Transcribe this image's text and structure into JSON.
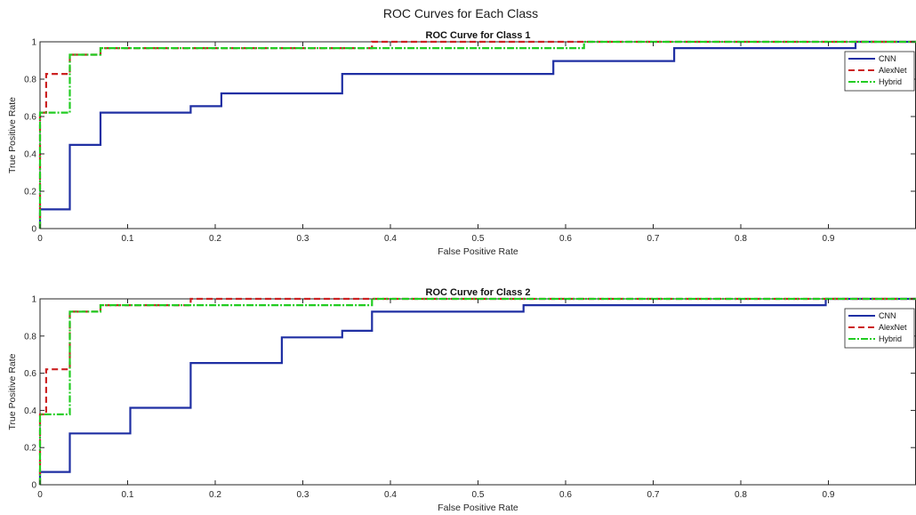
{
  "figure_title": "ROC Curves for Each Class",
  "colors": {
    "cnn": "#1f2fa3",
    "alexnet": "#cc2222",
    "hybrid": "#22cc22",
    "axis": "#262626"
  },
  "chart_data": [
    {
      "type": "line",
      "title": "ROC Curve for Class 1",
      "xlabel": "False Positive Rate",
      "ylabel": "True Positive Rate",
      "xlim": [
        0,
        1
      ],
      "ylim": [
        0,
        1
      ],
      "xticks": [
        "0",
        "0.1",
        "0.2",
        "0.3",
        "0.4",
        "0.5",
        "0.6",
        "0.7",
        "0.8",
        "0.9"
      ],
      "yticks": [
        "0",
        "0.2",
        "0.4",
        "0.6",
        "0.8",
        "1"
      ],
      "grid": false,
      "legend": "top-right",
      "series": [
        {
          "name": "CNN",
          "x": [
            0,
            0,
            0.034,
            0.034,
            0.069,
            0.069,
            0.172,
            0.172,
            0.207,
            0.207,
            0.345,
            0.345,
            0.586,
            0.586,
            0.724,
            0.724,
            0.931,
            0.931,
            1.0
          ],
          "y": [
            0,
            0.103,
            0.103,
            0.448,
            0.448,
            0.621,
            0.621,
            0.655,
            0.655,
            0.724,
            0.724,
            0.828,
            0.828,
            0.897,
            0.897,
            0.966,
            0.966,
            1.0,
            1.0
          ]
        },
        {
          "name": "AlexNet",
          "x": [
            0,
            0,
            0.007,
            0.007,
            0.034,
            0.034,
            0.069,
            0.069,
            0.379,
            0.379,
            0.621,
            0.621,
            1.0
          ],
          "y": [
            0,
            0.621,
            0.621,
            0.828,
            0.828,
            0.931,
            0.931,
            0.966,
            0.966,
            1.0,
            1.0,
            1.0,
            1.0
          ]
        },
        {
          "name": "Hybrid",
          "x": [
            0,
            0,
            0.034,
            0.034,
            0.069,
            0.069,
            0.621,
            0.621,
            1.0
          ],
          "y": [
            0,
            0.621,
            0.621,
            0.931,
            0.931,
            0.966,
            0.966,
            1.0,
            1.0
          ]
        }
      ]
    },
    {
      "type": "line",
      "title": "ROC Curve for Class 2",
      "xlabel": "False Positive Rate",
      "ylabel": "True Positive Rate",
      "xlim": [
        0,
        1
      ],
      "ylim": [
        0,
        1
      ],
      "xticks": [
        "0",
        "0.1",
        "0.2",
        "0.3",
        "0.4",
        "0.5",
        "0.6",
        "0.7",
        "0.8",
        "0.9"
      ],
      "yticks": [
        "0",
        "0.2",
        "0.4",
        "0.6",
        "0.8",
        "1"
      ],
      "grid": false,
      "legend": "top-right",
      "series": [
        {
          "name": "CNN",
          "x": [
            0,
            0,
            0.034,
            0.034,
            0.103,
            0.103,
            0.172,
            0.172,
            0.276,
            0.276,
            0.345,
            0.345,
            0.379,
            0.379,
            0.552,
            0.552,
            0.897,
            0.897,
            1.0
          ],
          "y": [
            0,
            0.069,
            0.069,
            0.276,
            0.276,
            0.414,
            0.414,
            0.655,
            0.655,
            0.793,
            0.793,
            0.828,
            0.828,
            0.931,
            0.931,
            0.966,
            0.966,
            1.0,
            1.0
          ]
        },
        {
          "name": "AlexNet",
          "x": [
            0,
            0,
            0.007,
            0.007,
            0.034,
            0.034,
            0.069,
            0.069,
            0.172,
            0.172,
            1.0
          ],
          "y": [
            0,
            0.379,
            0.379,
            0.621,
            0.621,
            0.931,
            0.931,
            0.966,
            0.966,
            1.0,
            1.0
          ]
        },
        {
          "name": "Hybrid",
          "x": [
            0,
            0,
            0.034,
            0.034,
            0.069,
            0.069,
            0.379,
            0.379,
            1.0
          ],
          "y": [
            0,
            0.379,
            0.379,
            0.931,
            0.931,
            0.966,
            0.966,
            1.0,
            1.0
          ]
        }
      ]
    }
  ]
}
